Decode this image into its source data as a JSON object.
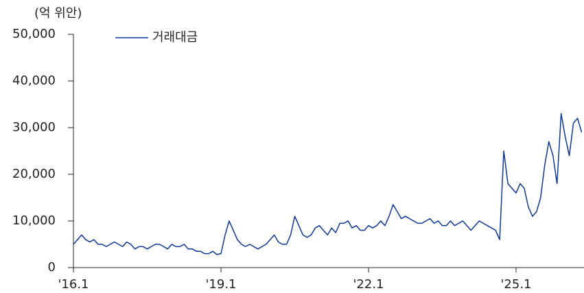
{
  "chart_data": {
    "type": "line",
    "unit_label": "(억 위안)",
    "categories": [
      "'16.1",
      null,
      null,
      null,
      null,
      null,
      null,
      null,
      null,
      null,
      null,
      null,
      null,
      null,
      null,
      null,
      null,
      null,
      null,
      null,
      null,
      null,
      null,
      null,
      null,
      null,
      null,
      null,
      null,
      null,
      null,
      null,
      null,
      null,
      null,
      null,
      "'19.1",
      null,
      null,
      null,
      null,
      null,
      null,
      null,
      null,
      null,
      null,
      null,
      null,
      null,
      null,
      null,
      null,
      null,
      null,
      null,
      null,
      null,
      null,
      null,
      null,
      null,
      null,
      null,
      null,
      null,
      null,
      null,
      null,
      null,
      null,
      null,
      "'22.1",
      null,
      null,
      null,
      null,
      null,
      null,
      null,
      null,
      null,
      null,
      null,
      null,
      null,
      null,
      null,
      null,
      null,
      null,
      null,
      null,
      null,
      null,
      null,
      null,
      null,
      null,
      null,
      null,
      null,
      null,
      null,
      null,
      null,
      null,
      null,
      "'25.1",
      null,
      null,
      null,
      null,
      null,
      null,
      null,
      null,
      null,
      null,
      null,
      null,
      null,
      null,
      null,
      null
    ],
    "series": [
      {
        "name": "거래대금",
        "color": "#0b3697",
        "values": [
          5000,
          6000,
          7000,
          6000,
          5500,
          6000,
          5000,
          5000,
          4500,
          5000,
          5500,
          5000,
          4500,
          5500,
          5000,
          4000,
          4500,
          4500,
          4000,
          4500,
          5000,
          5000,
          4500,
          4000,
          5000,
          4500,
          4500,
          5000,
          4000,
          4000,
          3500,
          3500,
          3000,
          3000,
          3500,
          2800,
          3000,
          7000,
          10000,
          8000,
          6000,
          5000,
          4500,
          5000,
          4500,
          4000,
          4500,
          5000,
          6000,
          7000,
          5500,
          5000,
          5000,
          7000,
          11000,
          9000,
          7000,
          6500,
          7000,
          8500,
          9000,
          8000,
          7000,
          8500,
          7500,
          9500,
          9500,
          10000,
          8500,
          9000,
          8000,
          8000,
          9000,
          8500,
          9000,
          10000,
          9000,
          11000,
          13500,
          12000,
          10500,
          11000,
          10500,
          10000,
          9500,
          9500,
          10000,
          10500,
          9500,
          10000,
          9000,
          9000,
          10000,
          9000,
          9500,
          10000,
          9000,
          8000,
          9000,
          10000,
          9500,
          9000,
          8500,
          8000,
          6000,
          25000,
          18000,
          17000,
          16000,
          18000,
          17000,
          13000,
          11000,
          12000,
          15000,
          22000,
          27000,
          24000,
          18000,
          33000,
          28000,
          24000,
          31000,
          32000,
          29000
        ]
      }
    ],
    "ylim": [
      0,
      50000
    ],
    "yticks": [
      0,
      {
        "value": 10000,
        "label": "10,000"
      },
      {
        "value": 20000,
        "label": "20,000"
      },
      {
        "value": 30000,
        "label": "30,000"
      },
      {
        "value": 40000,
        "label": "40,000"
      },
      {
        "value": 50000,
        "label": "50,000"
      }
    ]
  }
}
